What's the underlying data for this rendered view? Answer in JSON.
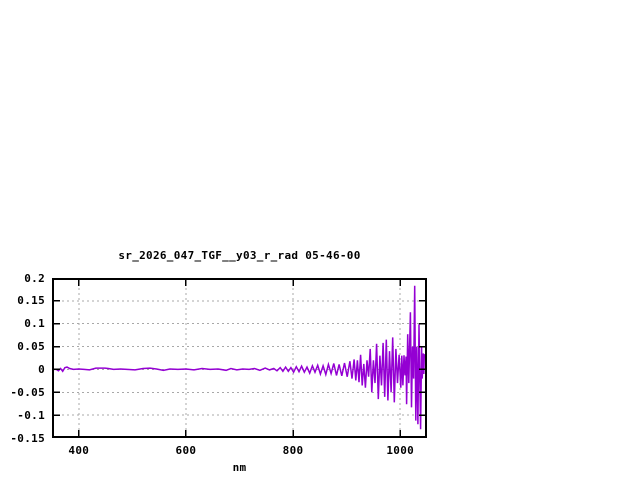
{
  "page": {
    "background": "#ffffff"
  },
  "chart_data": {
    "type": "line",
    "title": "sr_2026_047_TGF__y03_r_rad 05-46-00",
    "xlabel": "nm",
    "ylabel": "",
    "xlim": [
      350,
      1050
    ],
    "ylim": [
      -0.15,
      0.2
    ],
    "grid": true,
    "legend": "none",
    "line_color": "#9400d3",
    "grid_color": "#a8a8a8",
    "border_color": "#000000",
    "xticks": [
      {
        "v": 400,
        "label": "400"
      },
      {
        "v": 600,
        "label": "600"
      },
      {
        "v": 800,
        "label": "800"
      },
      {
        "v": 1000,
        "label": "1000"
      }
    ],
    "yticks": [
      {
        "v": -0.15,
        "label": "-0.15"
      },
      {
        "v": -0.1,
        "label": "-0.1"
      },
      {
        "v": -0.05,
        "label": "-0.05"
      },
      {
        "v": 0,
        "label": "0"
      },
      {
        "v": 0.05,
        "label": "0.05"
      },
      {
        "v": 0.1,
        "label": "0.1"
      },
      {
        "v": 0.15,
        "label": "0.15"
      },
      {
        "v": 0.2,
        "label": "0.2"
      }
    ],
    "series": [
      {
        "points": [
          [
            350,
            0
          ],
          [
            358,
            0
          ],
          [
            362,
            -0.003
          ],
          [
            366,
            0.002
          ],
          [
            370,
            -0.004
          ],
          [
            374,
            0.004
          ],
          [
            378,
            0.005
          ],
          [
            383,
            0.002
          ],
          [
            390,
            0
          ],
          [
            400,
            0.001
          ],
          [
            410,
            0
          ],
          [
            420,
            -0.001
          ],
          [
            432,
            0.003
          ],
          [
            449,
            0.003
          ],
          [
            455,
            0.002
          ],
          [
            465,
            0
          ],
          [
            478,
            0.001
          ],
          [
            490,
            0
          ],
          [
            505,
            -0.001
          ],
          [
            520,
            0.002
          ],
          [
            533,
            0.003
          ],
          [
            545,
            0.001
          ],
          [
            558,
            -0.002
          ],
          [
            570,
            0.001
          ],
          [
            585,
            0
          ],
          [
            600,
            0.001
          ],
          [
            615,
            -0.001
          ],
          [
            630,
            0.002
          ],
          [
            645,
            0
          ],
          [
            660,
            0.001
          ],
          [
            675,
            -0.002
          ],
          [
            684,
            0.002
          ],
          [
            695,
            -0.001
          ],
          [
            706,
            0.001
          ],
          [
            718,
            0
          ],
          [
            728,
            0.002
          ],
          [
            738,
            -0.002
          ],
          [
            748,
            0.003
          ],
          [
            756,
            -0.001
          ],
          [
            764,
            0.002
          ],
          [
            770,
            -0.003
          ],
          [
            776,
            0.004
          ],
          [
            781,
            -0.004
          ],
          [
            786,
            0.005
          ],
          [
            791,
            -0.004
          ],
          [
            796,
            0.004
          ],
          [
            801,
            -0.006
          ],
          [
            806,
            0.006
          ],
          [
            811,
            -0.005
          ],
          [
            816,
            0.007
          ],
          [
            821,
            -0.006
          ],
          [
            826,
            0.005
          ],
          [
            831,
            -0.008
          ],
          [
            836,
            0.008
          ],
          [
            841,
            -0.006
          ],
          [
            846,
            0.009
          ],
          [
            851,
            -0.01
          ],
          [
            856,
            0.008
          ],
          [
            861,
            -0.011
          ],
          [
            866,
            0.011
          ],
          [
            871,
            -0.009
          ],
          [
            876,
            0.013
          ],
          [
            881,
            -0.013
          ],
          [
            886,
            0.011
          ],
          [
            891,
            -0.014
          ],
          [
            896,
            0.014
          ],
          [
            901,
            -0.016
          ],
          [
            906,
            0.018
          ],
          [
            910,
            -0.02
          ],
          [
            914,
            0.022
          ],
          [
            917,
            -0.024
          ],
          [
            920,
            0.02
          ],
          [
            923,
            -0.028
          ],
          [
            926,
            0.032
          ],
          [
            929,
            -0.035
          ],
          [
            932,
            0.012
          ],
          [
            935,
            -0.04
          ],
          [
            938,
            0.02
          ],
          [
            941,
            -0.016
          ],
          [
            944,
            0.045
          ],
          [
            947,
            -0.05
          ],
          [
            950,
            0.02
          ],
          [
            953,
            -0.03
          ],
          [
            956,
            0.056
          ],
          [
            959,
            -0.065
          ],
          [
            962,
            0.03
          ],
          [
            965,
            -0.035
          ],
          [
            968,
            0.058
          ],
          [
            971,
            -0.06
          ],
          [
            974,
            0.065
          ],
          [
            977,
            -0.068
          ],
          [
            980,
            0.04
          ],
          [
            983,
            -0.05
          ],
          [
            986,
            0.07
          ],
          [
            989,
            -0.072
          ],
          [
            992,
            0.045
          ],
          [
            995,
            -0.03
          ],
          [
            998,
            0.032
          ],
          [
            1001,
            -0.04
          ],
          [
            1003,
            0.03
          ],
          [
            1005,
            -0.035
          ],
          [
            1007,
            0.031
          ],
          [
            1009,
            -0.013
          ],
          [
            1011,
            0.028
          ],
          [
            1012,
            -0.076
          ],
          [
            1014,
            0.077
          ],
          [
            1016,
            -0.03
          ],
          [
            1019,
            0.125
          ],
          [
            1021,
            -0.083
          ],
          [
            1023,
            0.05
          ],
          [
            1025,
            -0.02
          ],
          [
            1027,
            0.183
          ],
          [
            1029,
            -0.112
          ],
          [
            1031,
            0.05
          ],
          [
            1033,
            -0.12
          ],
          [
            1035,
            0.099
          ],
          [
            1038,
            -0.131
          ],
          [
            1040,
            0.048
          ],
          [
            1041,
            -0.02
          ],
          [
            1043,
            0.035
          ],
          [
            1044,
            -0.01
          ],
          [
            1045,
            0.032
          ],
          [
            1047,
            0.03
          ],
          [
            1048,
            0.028
          ],
          [
            1050,
            0.03
          ]
        ]
      }
    ]
  }
}
